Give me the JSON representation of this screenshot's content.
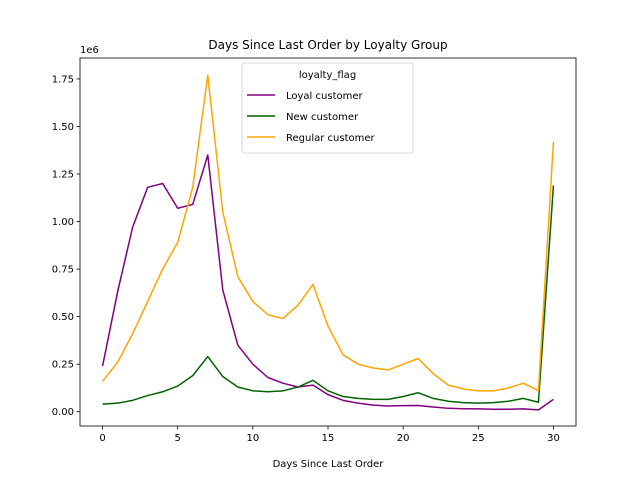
{
  "chart_data": {
    "type": "line",
    "title": "Days Since Last Order by Loyalty Group",
    "xlabel": "Days Since Last Order",
    "ylabel": "",
    "y_offset_label": "1e6",
    "xlim": [
      -1.5,
      31.5
    ],
    "ylim": [
      -0.075,
      1.86
    ],
    "x_ticks": [
      0,
      5,
      10,
      15,
      20,
      25,
      30
    ],
    "y_ticks": [
      0.0,
      0.25,
      0.5,
      0.75,
      1.0,
      1.25,
      1.5,
      1.75
    ],
    "y_tick_labels": [
      "0.00",
      "0.25",
      "0.50",
      "0.75",
      "1.00",
      "1.25",
      "1.50",
      "1.75"
    ],
    "grid": false,
    "legend": {
      "title": "loyalty_flag",
      "placement": "upper center"
    },
    "x": [
      0,
      1,
      2,
      3,
      4,
      5,
      6,
      7,
      8,
      9,
      10,
      11,
      12,
      13,
      14,
      15,
      16,
      17,
      18,
      19,
      20,
      21,
      22,
      23,
      24,
      25,
      26,
      27,
      28,
      29,
      30
    ],
    "series": [
      {
        "name": "Loyal customer",
        "color": "#800080",
        "values": [
          0.24,
          0.63,
          0.97,
          1.18,
          1.2,
          1.07,
          1.09,
          1.35,
          0.64,
          0.35,
          0.25,
          0.18,
          0.15,
          0.13,
          0.14,
          0.09,
          0.06,
          0.045,
          0.035,
          0.03,
          0.032,
          0.033,
          0.025,
          0.018,
          0.016,
          0.015,
          0.013,
          0.013,
          0.015,
          0.01,
          0.065
        ]
      },
      {
        "name": "New customer",
        "color": "#006400",
        "values": [
          0.04,
          0.045,
          0.06,
          0.085,
          0.105,
          0.135,
          0.19,
          0.29,
          0.185,
          0.13,
          0.11,
          0.105,
          0.11,
          0.13,
          0.165,
          0.11,
          0.08,
          0.07,
          0.065,
          0.065,
          0.08,
          0.1,
          0.07,
          0.055,
          0.048,
          0.045,
          0.048,
          0.055,
          0.07,
          0.05,
          1.19
        ]
      },
      {
        "name": "Regular customer",
        "color": "#FFA500",
        "values": [
          0.16,
          0.26,
          0.41,
          0.58,
          0.75,
          0.89,
          1.18,
          1.77,
          1.05,
          0.71,
          0.58,
          0.51,
          0.49,
          0.56,
          0.67,
          0.45,
          0.3,
          0.25,
          0.23,
          0.22,
          0.25,
          0.28,
          0.2,
          0.14,
          0.12,
          0.11,
          0.11,
          0.125,
          0.15,
          0.11,
          1.42
        ]
      }
    ]
  }
}
